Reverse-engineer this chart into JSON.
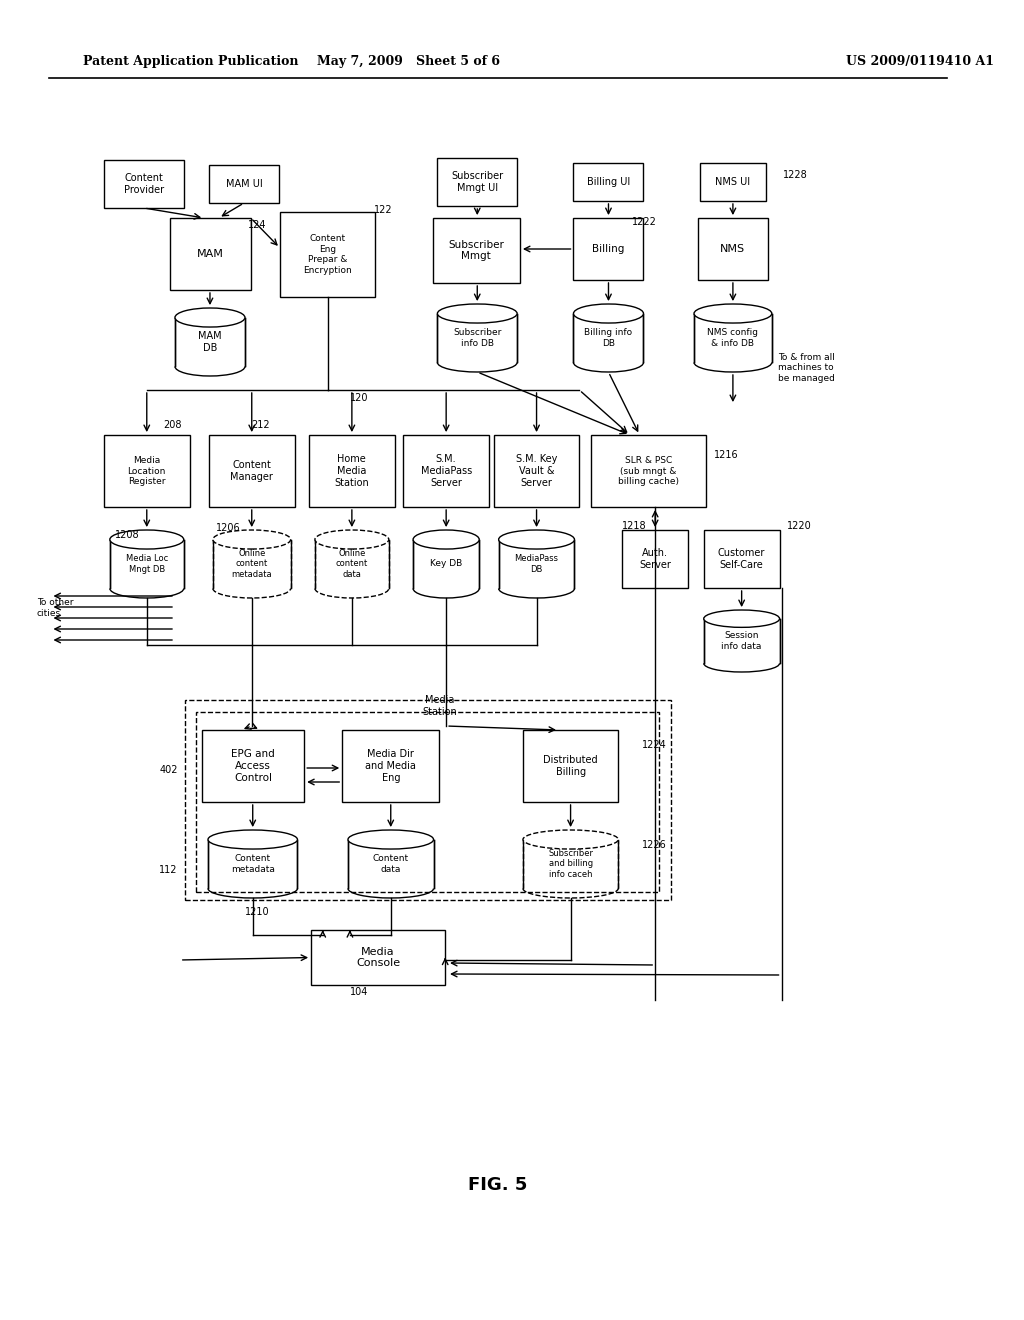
{
  "header_left": "Patent Application Publication",
  "header_mid": "May 7, 2009   Sheet 5 of 6",
  "header_right": "US 2009/0119410 A1",
  "footer_label": "FIG. 5",
  "bg_color": "#ffffff"
}
